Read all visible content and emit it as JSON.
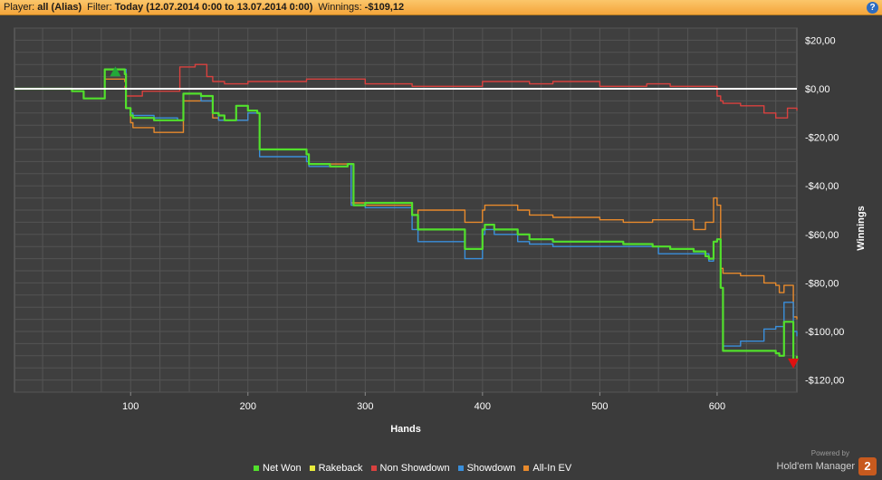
{
  "header": {
    "player_label": "Player:",
    "player_value": "all (Alias)",
    "filter_label": "Filter:",
    "filter_value": "Today (12.07.2014 0:00 to 13.07.2014 0:00)",
    "winnings_label": "Winnings:",
    "winnings_value": "-$109,12",
    "help_glyph": "?"
  },
  "chart_data": {
    "type": "line",
    "xlabel": "Hands",
    "ylabel": "Winnings",
    "xlim": [
      1,
      668
    ],
    "ylim": [
      -125,
      25
    ],
    "xticks": [
      100,
      200,
      300,
      400,
      500,
      600
    ],
    "yticks": [
      20,
      0,
      -20,
      -40,
      -60,
      -80,
      -100,
      -120
    ],
    "ytick_labels": [
      "$20,00",
      "$0,00",
      "-$20,00",
      "-$40,00",
      "-$60,00",
      "-$80,00",
      "-$100,00",
      "-$120,00"
    ],
    "grid": true,
    "legend_position": "bottom",
    "markers": [
      {
        "type": "max",
        "x": 87,
        "y": 7,
        "color": "#22a838"
      },
      {
        "type": "min",
        "x": 665,
        "y": -113,
        "color": "#e01010"
      }
    ],
    "series": [
      {
        "name": "Net Won",
        "color": "#52e02c",
        "x": [
          1,
          40,
          50,
          60,
          76,
          78,
          95,
          96,
          100,
          102,
          120,
          140,
          145,
          160,
          170,
          175,
          180,
          190,
          200,
          208,
          210,
          250,
          252,
          270,
          285,
          288,
          290,
          300,
          310,
          340,
          345,
          380,
          385,
          400,
          402,
          410,
          430,
          440,
          450,
          460,
          500,
          520,
          545,
          560,
          580,
          590,
          593,
          597,
          600,
          603,
          605,
          640,
          650,
          653,
          657,
          661,
          665,
          668
        ],
        "values": [
          0,
          0,
          -1,
          -4,
          -4,
          8,
          6,
          -8,
          -11,
          -12,
          -13,
          -13,
          -2,
          -3,
          -10,
          -11,
          -13,
          -7,
          -9,
          -10,
          -25,
          -27,
          -31,
          -32,
          -31,
          -31,
          -48,
          -47,
          -47,
          -52,
          -58,
          -58,
          -66,
          -58,
          -56,
          -58,
          -60,
          -62,
          -62,
          -63,
          -63,
          -64,
          -65,
          -66,
          -67,
          -69,
          -70,
          -63,
          -62,
          -82,
          -108,
          -108,
          -109,
          -110,
          -96,
          -96,
          -112,
          -110
        ]
      },
      {
        "name": "Rakeback",
        "color": "#e7ea3c",
        "x": [
          1,
          668
        ],
        "values": [
          0,
          0
        ]
      },
      {
        "name": "Non Showdown",
        "color": "#d9413f",
        "x": [
          1,
          50,
          95,
          96,
          110,
          120,
          140,
          142,
          155,
          165,
          170,
          180,
          200,
          250,
          300,
          340,
          400,
          440,
          460,
          500,
          540,
          560,
          580,
          597,
          600,
          603,
          605,
          620,
          640,
          650,
          660,
          668
        ],
        "values": [
          0,
          0,
          1,
          -3,
          -1,
          -1,
          -1,
          9,
          10,
          5,
          3,
          2,
          3,
          4,
          2,
          1,
          3,
          2,
          3,
          1,
          2,
          1,
          1,
          1,
          -3,
          -5,
          -6,
          -7,
          -10,
          -12,
          -8,
          -9
        ]
      },
      {
        "name": "Showdown",
        "color": "#3a8fdb",
        "x": [
          1,
          40,
          50,
          60,
          76,
          78,
          95,
          96,
          100,
          102,
          120,
          140,
          145,
          160,
          170,
          175,
          200,
          208,
          210,
          250,
          252,
          285,
          288,
          290,
          300,
          340,
          345,
          380,
          385,
          400,
          402,
          410,
          430,
          440,
          460,
          500,
          550,
          590,
          593,
          597,
          600,
          603,
          605,
          620,
          640,
          650,
          653,
          657,
          661,
          665,
          668
        ],
        "values": [
          0,
          0,
          -1,
          -4,
          -4,
          8,
          8,
          -8,
          -10,
          -11,
          -12,
          -13,
          -2,
          -5,
          -10,
          -13,
          -10,
          -10,
          -28,
          -30,
          -32,
          -31,
          -48,
          -48,
          -49,
          -58,
          -63,
          -63,
          -70,
          -60,
          -58,
          -60,
          -63,
          -64,
          -65,
          -65,
          -68,
          -68,
          -71,
          -63,
          -62,
          -82,
          -106,
          -104,
          -99,
          -98,
          -98,
          -88,
          -88,
          -100,
          -102
        ]
      },
      {
        "name": "All-In EV",
        "color": "#e88a2c",
        "x": [
          1,
          40,
          50,
          60,
          76,
          78,
          95,
          96,
          100,
          102,
          120,
          140,
          145,
          160,
          170,
          175,
          200,
          208,
          210,
          250,
          252,
          285,
          288,
          290,
          300,
          340,
          345,
          380,
          385,
          400,
          402,
          410,
          430,
          440,
          460,
          500,
          520,
          545,
          560,
          580,
          590,
          593,
          597,
          600,
          603,
          605,
          620,
          640,
          650,
          653,
          657,
          661,
          665,
          668
        ],
        "values": [
          0,
          0,
          -1,
          -4,
          -4,
          4,
          3,
          -8,
          -14,
          -16,
          -18,
          -18,
          -5,
          -5,
          -12,
          -13,
          -10,
          -10,
          -25,
          -27,
          -31,
          -31,
          -47,
          -47,
          -48,
          -52,
          -50,
          -50,
          -55,
          -50,
          -48,
          -48,
          -50,
          -52,
          -53,
          -54,
          -55,
          -54,
          -54,
          -58,
          -55,
          -55,
          -45,
          -48,
          -74,
          -76,
          -77,
          -80,
          -81,
          -84,
          -81,
          -81,
          -94,
          -95
        ]
      }
    ]
  },
  "legend": {
    "items": [
      {
        "label": "Net Won",
        "color": "#52e02c"
      },
      {
        "label": "Rakeback",
        "color": "#e7ea3c"
      },
      {
        "label": "Non Showdown",
        "color": "#d9413f"
      },
      {
        "label": "Showdown",
        "color": "#3a8fdb"
      },
      {
        "label": "All-In EV",
        "color": "#e88a2c"
      }
    ]
  },
  "brand": {
    "powered_by": "Powered by",
    "name": "Hold'em Manager",
    "logo_text": "2"
  }
}
